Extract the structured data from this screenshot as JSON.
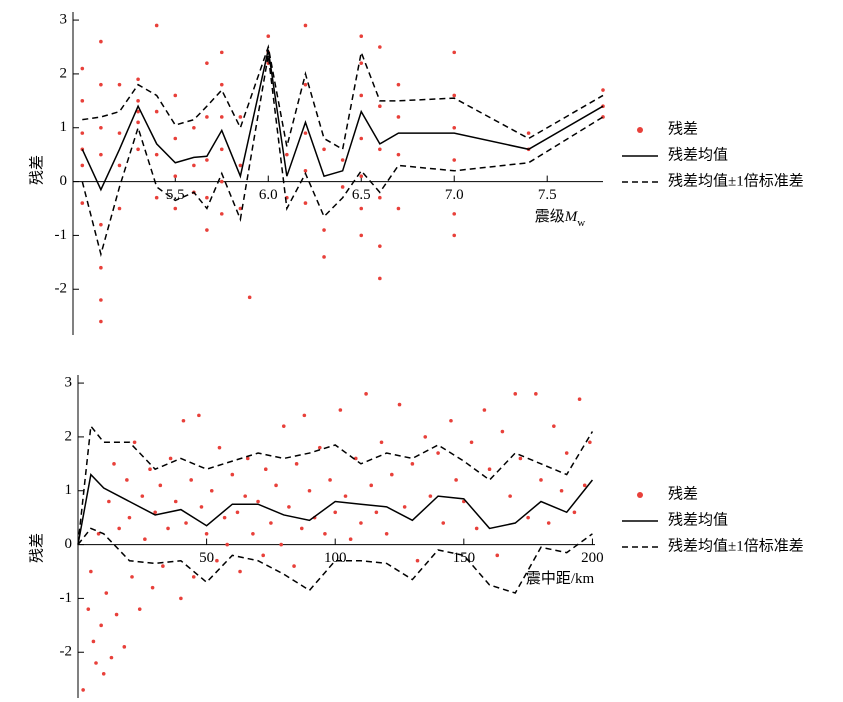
{
  "chart_data": [
    {
      "type": "scatter",
      "ylabel": "残差",
      "xlabel": {
        "text": "震级",
        "italic": "M",
        "subscript": "w"
      },
      "xlim": [
        4.95,
        7.8
      ],
      "ylim": [
        -2.85,
        3.15
      ],
      "xticks": [
        {
          "value": 5.5,
          "label": "5.5"
        },
        {
          "value": 6,
          "label": "6.0"
        },
        {
          "value": 6.5,
          "label": "6.5"
        },
        {
          "value": 7,
          "label": "7.0"
        },
        {
          "value": 7.5,
          "label": "7.5"
        }
      ],
      "yticks": [
        -2,
        -1,
        0,
        1,
        2,
        3
      ],
      "series": [
        {
          "name": "残差",
          "color": "#e8403a",
          "x": [
            5,
            5,
            5,
            5,
            5,
            5,
            5.1,
            5.1,
            5.1,
            5.1,
            5.1,
            5.1,
            5.1,
            5.1,
            5.2,
            5.2,
            5.2,
            5.2,
            5.3,
            5.3,
            5.3,
            5.3,
            5.3,
            5.4,
            5.4,
            5.4,
            5.4,
            5.5,
            5.5,
            5.5,
            5.5,
            5.6,
            5.6,
            5.6,
            5.67,
            5.67,
            5.67,
            5.67,
            5.67,
            5.75,
            5.75,
            5.75,
            5.75,
            5.75,
            5.75,
            5.85,
            5.85,
            5.85,
            5.9,
            6,
            6,
            6,
            6.1,
            6.1,
            6.2,
            6.2,
            6.2,
            6.2,
            6.2,
            6.3,
            6.3,
            6.3,
            6.4,
            6.4,
            6.5,
            6.5,
            6.5,
            6.5,
            6.5,
            6.5,
            6.5,
            6.6,
            6.6,
            6.6,
            6.6,
            6.6,
            6.6,
            6.7,
            6.7,
            6.7,
            6.7,
            7,
            7,
            7,
            7,
            7,
            7,
            7.4,
            7.4,
            7.8,
            7.8,
            7.8
          ],
          "values": [
            0.9,
            0.3,
            -0.4,
            1.5,
            0.6,
            2.1,
            2.6,
            1.8,
            0.5,
            -0.8,
            -1.6,
            -2.2,
            -2.6,
            1,
            1.8,
            0.9,
            0.3,
            -0.5,
            1.9,
            1.5,
            1.1,
            0.6,
            1.3,
            2.9,
            1.3,
            0.5,
            -0.3,
            1.6,
            0.8,
            0.1,
            -0.5,
            1,
            0.3,
            -0.2,
            2.2,
            1.2,
            0.4,
            -0.3,
            -0.9,
            2.4,
            1.8,
            1.2,
            0.6,
            0,
            -0.6,
            1.2,
            0.3,
            -0.5,
            -2.15,
            2.7,
            2.4,
            2.2,
            0.5,
            -0.3,
            2.9,
            1.8,
            0.9,
            0.2,
            -0.4,
            0.6,
            -0.9,
            -1.4,
            0.4,
            -0.1,
            2.7,
            2.2,
            1.6,
            0.8,
            0.1,
            -0.5,
            -1,
            2.5,
            1.4,
            0.6,
            -0.3,
            -1.2,
            -1.8,
            1.8,
            1.2,
            0.5,
            -0.5,
            2.4,
            1.6,
            1,
            0.4,
            -0.6,
            -1,
            0.9,
            0.6,
            1.7,
            1.4,
            1.2
          ]
        },
        {
          "name": "残差均值",
          "color": "#000000",
          "x": [
            5,
            5.1,
            5.2,
            5.3,
            5.4,
            5.5,
            5.6,
            5.67,
            5.75,
            5.85,
            6,
            6.1,
            6.2,
            6.3,
            6.4,
            6.5,
            6.6,
            6.7,
            7,
            7.4,
            7.8
          ],
          "values": [
            0.6,
            -0.15,
            0.6,
            1.4,
            0.7,
            0.35,
            0.45,
            0.47,
            0.95,
            0.1,
            2.45,
            0.1,
            1.1,
            0.1,
            0.2,
            1.3,
            0.7,
            0.9,
            0.9,
            0.6,
            1.4
          ]
        },
        {
          "name": "残差均值±1倍标准差",
          "color": "#000000",
          "x": [
            5,
            5.1,
            5.2,
            5.3,
            5.4,
            5.5,
            5.6,
            5.67,
            5.75,
            5.85,
            6,
            6.1,
            6.2,
            6.3,
            6.4,
            6.5,
            6.6,
            6.7,
            7,
            7.4,
            7.8
          ],
          "upper": [
            1.15,
            1.2,
            1.3,
            1.8,
            1.6,
            1.05,
            1.15,
            1.4,
            1.7,
            1,
            2.5,
            0.65,
            2,
            0.8,
            0.6,
            2.4,
            1.5,
            1.5,
            1.55,
            0.8,
            1.6
          ],
          "lower": [
            0,
            -1.35,
            -0.1,
            1,
            -0.1,
            -0.35,
            -0.2,
            -0.5,
            0.15,
            -0.7,
            2.35,
            -0.5,
            0.15,
            -0.65,
            -0.3,
            0.2,
            -0.2,
            0.3,
            0.2,
            0.35,
            1.2
          ]
        }
      ]
    },
    {
      "type": "scatter",
      "ylabel": "残差",
      "xlabel": {
        "text": "震中距/km"
      },
      "xlim": [
        0,
        201
      ],
      "ylim": [
        -2.85,
        3.15
      ],
      "xticks": [
        50,
        100,
        150,
        200
      ],
      "yticks": [
        -2,
        -1,
        0,
        1,
        2,
        3
      ],
      "series": [
        {
          "name": "残差",
          "color": "#e8403a",
          "x": [
            2,
            4,
            5,
            6,
            7,
            8,
            9,
            10,
            11,
            12,
            13,
            14,
            15,
            16,
            18,
            19,
            20,
            21,
            22,
            24,
            25,
            26,
            28,
            29,
            30,
            32,
            33,
            35,
            36,
            38,
            40,
            41,
            42,
            44,
            45,
            47,
            48,
            50,
            52,
            54,
            55,
            57,
            58,
            60,
            62,
            63,
            65,
            66,
            68,
            70,
            72,
            73,
            75,
            77,
            79,
            80,
            82,
            84,
            85,
            87,
            88,
            90,
            92,
            94,
            96,
            98,
            100,
            102,
            104,
            106,
            108,
            110,
            112,
            114,
            116,
            118,
            120,
            122,
            125,
            127,
            130,
            132,
            135,
            137,
            140,
            142,
            145,
            147,
            150,
            153,
            155,
            158,
            160,
            163,
            165,
            168,
            170,
            172,
            175,
            178,
            180,
            183,
            185,
            188,
            190,
            193,
            195,
            197,
            199
          ],
          "values": [
            -2.7,
            -1.2,
            -0.5,
            -1.8,
            -2.2,
            0.2,
            -1.5,
            -2.4,
            -0.9,
            0.8,
            -2.1,
            1.5,
            -1.3,
            0.3,
            -1.9,
            1.2,
            0.5,
            -0.6,
            1.9,
            -1.2,
            0.9,
            0.1,
            1.4,
            -0.8,
            0.6,
            1.1,
            -0.4,
            0.3,
            1.6,
            0.8,
            -1,
            2.3,
            0.4,
            1.2,
            -0.6,
            2.4,
            0.7,
            0.2,
            1,
            -0.3,
            1.8,
            0.5,
            0,
            1.3,
            0.6,
            -0.5,
            0.9,
            1.6,
            0.2,
            0.8,
            -0.2,
            1.4,
            0.4,
            1.1,
            0,
            2.2,
            0.7,
            -0.4,
            1.5,
            0.3,
            2.4,
            1,
            0.5,
            1.8,
            0.2,
            1.2,
            0.6,
            2.5,
            0.9,
            0.1,
            1.6,
            0.4,
            2.8,
            1.1,
            0.6,
            1.9,
            0.2,
            1.3,
            2.6,
            0.7,
            1.5,
            -0.3,
            2,
            0.9,
            1.7,
            0.4,
            2.3,
            1.2,
            0.8,
            1.9,
            0.3,
            2.5,
            1.4,
            -0.2,
            2.1,
            0.9,
            2.8,
            1.6,
            0.5,
            2.8,
            1.2,
            0.4,
            2.2,
            1,
            1.7,
            0.6,
            2.7,
            1.1,
            1.9
          ]
        },
        {
          "name": "残差均值",
          "color": "#000000",
          "x": [
            0,
            5,
            10,
            20,
            30,
            40,
            50,
            60,
            70,
            80,
            90,
            100,
            110,
            120,
            130,
            140,
            150,
            160,
            170,
            180,
            190,
            200
          ],
          "values": [
            0,
            1.3,
            1.05,
            0.8,
            0.55,
            0.65,
            0.35,
            0.75,
            0.75,
            0.55,
            0.45,
            0.8,
            0.75,
            0.7,
            0.45,
            0.9,
            0.85,
            0.3,
            0.4,
            0.8,
            0.6,
            1.2
          ]
        },
        {
          "name": "残差均值±1倍标准差",
          "color": "#000000",
          "x": [
            0,
            5,
            10,
            20,
            30,
            40,
            50,
            60,
            70,
            80,
            90,
            100,
            110,
            120,
            130,
            140,
            150,
            160,
            170,
            180,
            190,
            200
          ],
          "upper": [
            0,
            2.2,
            1.9,
            1.9,
            1.4,
            1.6,
            1.4,
            1.55,
            1.7,
            1.6,
            1.7,
            1.85,
            1.5,
            1.7,
            1.6,
            1.85,
            1.55,
            1.2,
            1.7,
            1.5,
            1.3,
            2.1
          ],
          "lower": [
            0,
            0.3,
            0.2,
            -0.3,
            -0.35,
            -0.3,
            -0.7,
            -0.2,
            -0.3,
            -0.55,
            -0.85,
            -0.3,
            -0.3,
            -0.35,
            -0.65,
            -0.1,
            -0.2,
            -0.75,
            -0.9,
            -0.05,
            -0.15,
            0.2
          ]
        }
      ]
    }
  ]
}
